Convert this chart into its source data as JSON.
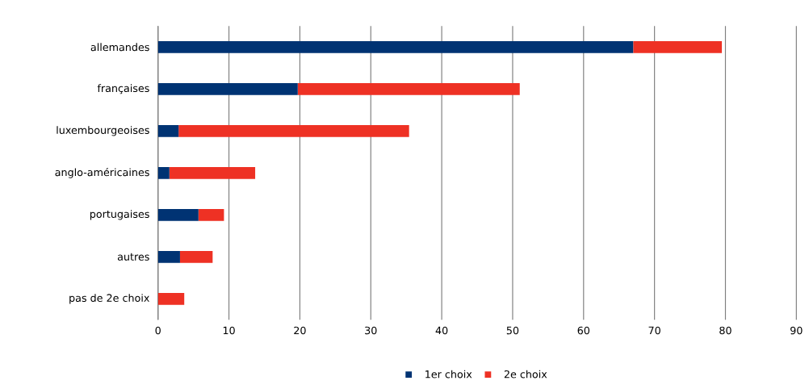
{
  "chart_data": {
    "type": "bar",
    "orientation": "horizontal",
    "stacked": true,
    "categories": [
      "allemandes",
      "françaises",
      "luxembourgeoises",
      "anglo-américaines",
      "portugaises",
      "autres",
      "pas de 2e choix"
    ],
    "series": [
      {
        "name": "1er choix",
        "color": "#003373",
        "values": [
          67.0,
          19.7,
          2.9,
          1.6,
          5.7,
          3.1,
          0
        ]
      },
      {
        "name": "2e choix",
        "color": "#ee3124",
        "values": [
          12.5,
          31.3,
          32.5,
          12.1,
          3.6,
          4.6,
          3.7
        ]
      }
    ],
    "xlim": [
      0,
      90
    ],
    "xticks": [
      0,
      10,
      20,
      30,
      40,
      50,
      60,
      70,
      80,
      90
    ],
    "grid": "x",
    "legend": "bottom"
  }
}
